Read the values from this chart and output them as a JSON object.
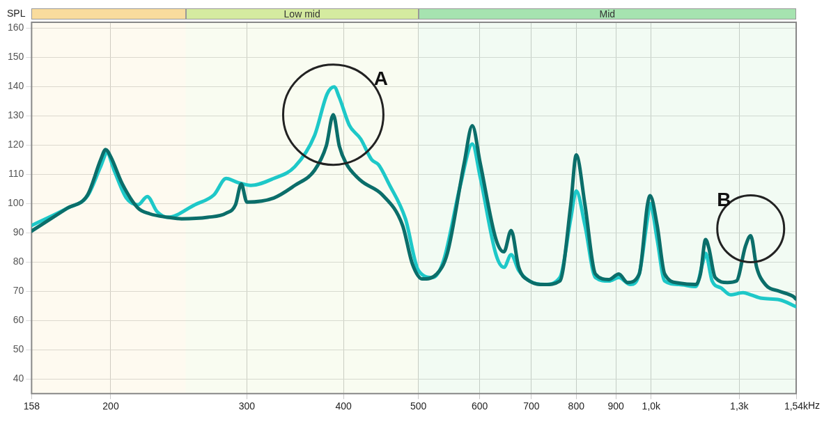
{
  "chart_data": {
    "type": "line",
    "ylabel": "SPL",
    "log": "x",
    "xlim": [
      158,
      1540
    ],
    "ylim": [
      35,
      162
    ],
    "xticks": [
      158,
      200,
      300,
      400,
      500,
      600,
      700,
      800,
      900,
      {
        "value": 1000,
        "label": "1,0k"
      },
      {
        "value": 1300,
        "label": "1,3k"
      },
      {
        "value": 1540,
        "label": "1,54k"
      }
    ],
    "xlabel": "Hz",
    "yticks": [
      40,
      50,
      60,
      70,
      80,
      90,
      100,
      110,
      120,
      130,
      140,
      150,
      160
    ],
    "grid": true,
    "legend": false,
    "marker": "none",
    "line_style": "solid",
    "bands": [
      {
        "axis": "x",
        "from": 158,
        "to": 250,
        "label": null,
        "color": "#f9dc9d"
      },
      {
        "axis": "x",
        "from": 250,
        "to": 500,
        "label": "Low mid",
        "color": "#d5eba0"
      },
      {
        "axis": "x",
        "from": 500,
        "to": 1540,
        "label": "Mid",
        "color": "#a6e3b0"
      }
    ],
    "annotations": [
      {
        "text": "A",
        "x": 388,
        "y": 130.4
      },
      {
        "text": "B",
        "x": 1345,
        "y": 89
      }
    ],
    "series": [
      {
        "color": "#0b6e6a",
        "x": [
          158,
          175.7,
          186.7,
          194.1,
          197,
          200,
          207,
          217,
          224.6,
          237,
          247,
          267,
          282,
          290,
          295,
          300,
          325,
          346,
          367,
          380,
          388,
          395,
          403,
          421,
          449,
          477,
          491,
          506,
          528,
          545,
          573,
          587,
          601,
          630,
          645,
          659,
          674,
          696,
          728,
          762,
          787,
          800,
          821,
          847,
          882,
          908,
          932,
          965,
          989,
          997,
          1018,
          1041,
          1086,
          1142,
          1158,
          1176,
          1187,
          1210,
          1255,
          1289,
          1324,
          1345,
          1369,
          1405,
          1465,
          1525,
          1540
        ],
        "values": [
          90.6,
          98.4,
          103,
          115,
          118.5,
          116,
          106.7,
          98.4,
          96.5,
          95.3,
          94.8,
          95.3,
          96.7,
          99.6,
          106.7,
          100.5,
          101.9,
          106.2,
          111.4,
          119.7,
          130.4,
          119.7,
          113.8,
          107.9,
          103,
          92.5,
          79.4,
          74.2,
          75.9,
          83,
          113.8,
          126.6,
          113.8,
          87.7,
          83.5,
          90.8,
          78.2,
          73.5,
          72.3,
          73.5,
          99.6,
          116.6,
          99.6,
          75.9,
          74,
          75.9,
          73,
          75.9,
          99.6,
          102.7,
          92.5,
          75.9,
          72.8,
          72.3,
          75.9,
          87.7,
          84.9,
          74.7,
          73,
          73.5,
          85.4,
          89,
          78.2,
          72.3,
          70,
          68.3,
          67.3
        ]
      },
      {
        "color": "#1ec8c8",
        "x": [
          158,
          175.7,
          186.7,
          194.1,
          197.8,
          202,
          209.5,
          217,
          223,
          229.6,
          237,
          257,
          272,
          282,
          292,
          303.5,
          325,
          346,
          367,
          381,
          389,
          395,
          407,
          421,
          435,
          444,
          458,
          481,
          500,
          522,
          539,
          567,
          587,
          601,
          630,
          645,
          659,
          674,
          696,
          728,
          762,
          787,
          800,
          821,
          847,
          882,
          908,
          940,
          965,
          989,
          997,
          1018,
          1041,
          1086,
          1142,
          1165,
          1176,
          1199,
          1232,
          1266,
          1315,
          1345,
          1390,
          1465,
          1540
        ],
        "values": [
          92.5,
          98.4,
          102.7,
          112.7,
          117.3,
          111.4,
          101.9,
          99.6,
          102.4,
          97.2,
          95.3,
          99.6,
          103,
          108.6,
          107.2,
          106.2,
          108.6,
          112.6,
          123.3,
          137.5,
          139.9,
          136.3,
          126.8,
          122.1,
          115,
          113.3,
          106.7,
          94.8,
          77.1,
          74.7,
          80.6,
          106.7,
          120.4,
          109,
          82.5,
          78.2,
          82.5,
          77.1,
          73.5,
          72.3,
          74.7,
          94.8,
          104.3,
          92.5,
          74.7,
          73.5,
          74.7,
          72.3,
          75.9,
          94.8,
          100,
          87.7,
          73.5,
          72.3,
          71.6,
          79.4,
          83,
          73.5,
          71.1,
          68.8,
          69.5,
          68.8,
          67.6,
          67.1,
          64.7
        ]
      }
    ]
  }
}
